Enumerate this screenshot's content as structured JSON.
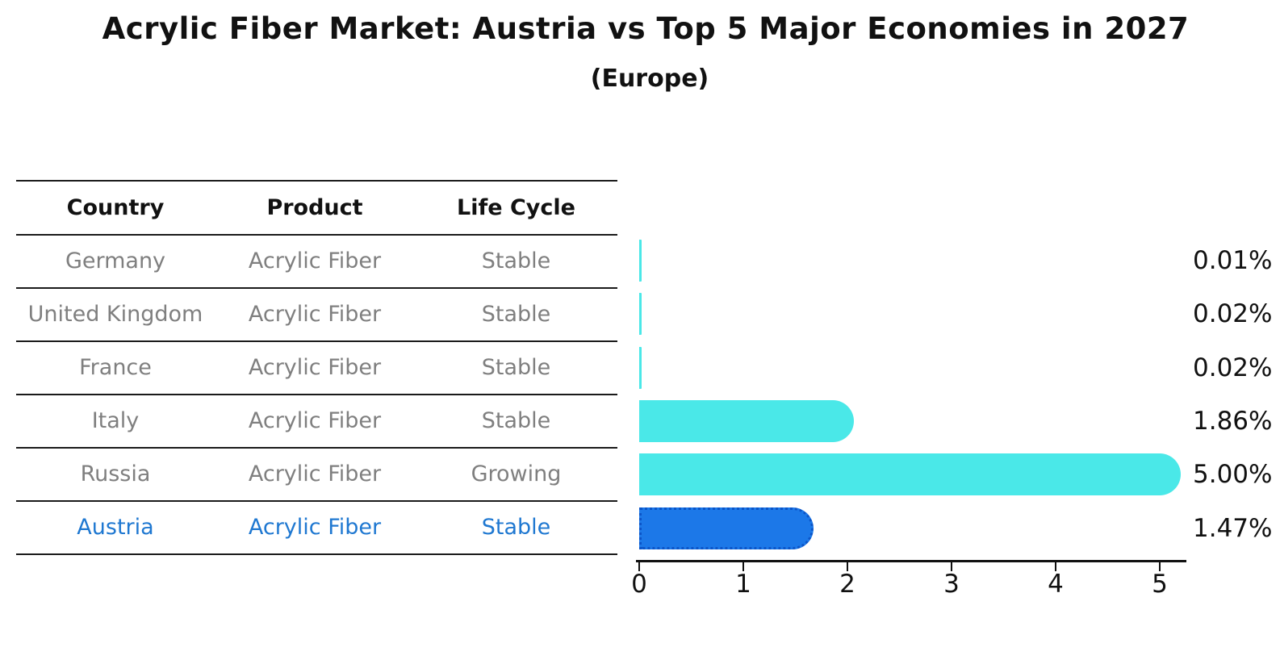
{
  "title": "Acrylic Fiber Market: Austria vs Top 5 Major Economies in 2027",
  "subtitle": "(Europe)",
  "table": {
    "headers": [
      "Country",
      "Product",
      "Life Cycle"
    ],
    "rows": [
      {
        "country": "Germany",
        "product": "Acrylic Fiber",
        "life_cycle": "Stable",
        "highlight": false
      },
      {
        "country": "United Kingdom",
        "product": "Acrylic Fiber",
        "life_cycle": "Stable",
        "highlight": false
      },
      {
        "country": "France",
        "product": "Acrylic Fiber",
        "life_cycle": "Stable",
        "highlight": false
      },
      {
        "country": "Italy",
        "product": "Acrylic Fiber",
        "life_cycle": "Stable",
        "highlight": false
      },
      {
        "country": "Russia",
        "product": "Acrylic Fiber",
        "life_cycle": "Growing",
        "highlight": false
      },
      {
        "country": "Austria",
        "product": "Acrylic Fiber",
        "life_cycle": "Stable",
        "highlight": true
      }
    ]
  },
  "chart_data": {
    "type": "bar",
    "orientation": "horizontal",
    "categories": [
      "Germany",
      "United Kingdom",
      "France",
      "Italy",
      "Russia",
      "Austria"
    ],
    "values": [
      0.01,
      0.02,
      0.02,
      1.86,
      5.0,
      1.47
    ],
    "value_labels": [
      "0.01%",
      "0.02%",
      "0.02%",
      "1.86%",
      "5.00%",
      "1.47%"
    ],
    "highlight_index": 5,
    "xlabel": "",
    "ylabel": "",
    "xlim": [
      0,
      5.3
    ],
    "xticks": [
      0,
      1,
      2,
      3,
      4,
      5
    ],
    "grid": false,
    "legend": false,
    "bar_color": "#4AE8E8",
    "highlight_bar_color": "#1C78E8",
    "highlight_bar_border_color": "#0C55C8",
    "highlight_text_color": "#1F78D1",
    "text_color": "#111111",
    "muted_text_color": "#7f7f7f"
  }
}
